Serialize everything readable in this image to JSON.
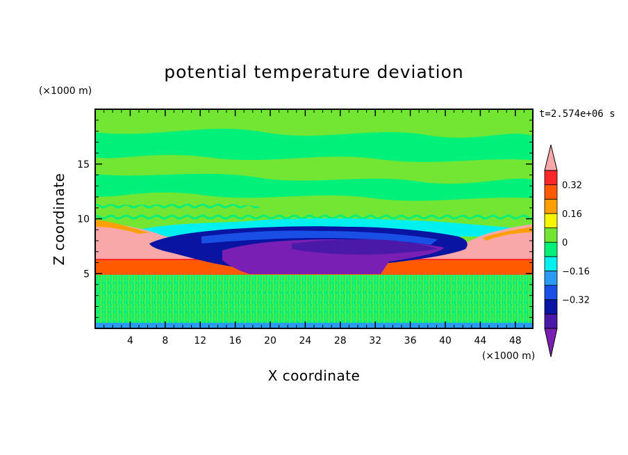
{
  "chart_data": {
    "type": "heatmap",
    "title": "potential temperature deviation",
    "xlabel": "X coordinate",
    "ylabel": "Z coordinate",
    "x_unit": "(×1000 m)",
    "y_unit": "(×1000 m)",
    "time_label": "t=2.574e+06 s",
    "xlim": [
      0,
      50
    ],
    "ylim": [
      0,
      20
    ],
    "x_ticks": [
      4,
      8,
      12,
      16,
      20,
      24,
      28,
      32,
      36,
      40,
      44,
      48
    ],
    "y_ticks": [
      5,
      10,
      15
    ],
    "x_tick_labels": [
      "4",
      "8",
      "12",
      "16",
      "20",
      "24",
      "28",
      "32",
      "36",
      "40",
      "44",
      "48"
    ],
    "y_tick_labels": [
      "5",
      "10",
      "15"
    ],
    "colorbar": {
      "levels": [
        -0.48,
        -0.4,
        -0.32,
        -0.24,
        -0.16,
        -0.08,
        0,
        0.08,
        0.16,
        0.24,
        0.32,
        0.4
      ],
      "colors": [
        "#7a1fb4",
        "#4a19a8",
        "#0a14a2",
        "#1a4fe6",
        "#2a9af2",
        "#00f0f0",
        "#00f07a",
        "#72e632",
        "#f5f500",
        "#ff9f00",
        "#ff5a00",
        "#fa2828",
        "#f8a8a8"
      ],
      "labels": [
        {
          "value": -0.32,
          "text": "−0.32"
        },
        {
          "value": -0.16,
          "text": "−0.16"
        },
        {
          "value": 0,
          "text": "0"
        },
        {
          "value": 0.16,
          "text": "0.16"
        },
        {
          "value": 0.32,
          "text": "0.32"
        }
      ]
    },
    "regions": [
      {
        "band": "z 0–5",
        "value_range": [
          -0.08,
          0.08
        ],
        "description_color": "green / cyan-green noise"
      },
      {
        "band": "z 5–6.3",
        "value_range": [
          0.32,
          0.4
        ],
        "description_color": "red-orange layer"
      },
      {
        "band": "z 6.3–9.8 (edges)",
        "value_range": [
          0.4,
          0.48
        ],
        "description_color": "pink"
      },
      {
        "band": "z 5–9 (x 15–42)",
        "value_range": [
          -0.48,
          -0.32
        ],
        "description_color": "purple / dark blue"
      },
      {
        "band": "z 10–20",
        "value_range": [
          -0.08,
          0.08
        ],
        "description_color": "green / cyan-green"
      }
    ]
  }
}
